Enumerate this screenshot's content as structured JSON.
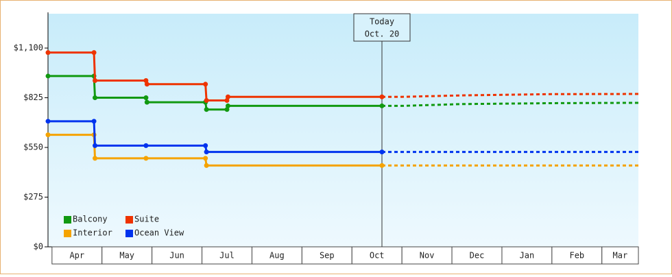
{
  "chart_data": {
    "type": "step-line",
    "categories": [
      "Apr",
      "May",
      "Jun",
      "Jul",
      "Aug",
      "Sep",
      "Oct",
      "Nov",
      "Dec",
      "Jan",
      "Feb",
      "Mar"
    ],
    "xlim": [
      -0.08,
      11.73
    ],
    "ylim": [
      0,
      1290
    ],
    "yticks": [
      {
        "value": 0,
        "label": "$0"
      },
      {
        "value": 275,
        "label": "$275"
      },
      {
        "value": 550,
        "label": "$550"
      },
      {
        "value": 825,
        "label": "$825"
      },
      {
        "value": 1100,
        "label": "$1,100"
      }
    ],
    "today": {
      "x": 6.6,
      "label": "Today",
      "date": "Oct. 20"
    },
    "series": [
      {
        "name": "Balcony",
        "color": "#119911",
        "x": [
          -0.08,
          0.84,
          0.86,
          1.88,
          1.9,
          3.07,
          3.09,
          3.5,
          3.52,
          6.6
        ],
        "values": [
          945,
          945,
          825,
          825,
          800,
          800,
          760,
          760,
          780,
          780
        ],
        "forecast_x": [
          6.6,
          7.0,
          8.2,
          10.0,
          11.73
        ],
        "forecast_values": [
          780,
          780,
          790,
          795,
          797
        ]
      },
      {
        "name": "Suite",
        "color": "#ee3300",
        "x": [
          -0.08,
          0.84,
          0.86,
          1.88,
          1.9,
          3.07,
          3.09,
          3.5,
          3.52,
          6.6
        ],
        "values": [
          1075,
          1075,
          920,
          920,
          900,
          900,
          810,
          810,
          830,
          830
        ],
        "forecast_x": [
          6.6,
          7.0,
          8.2,
          10.0,
          11.73
        ],
        "forecast_values": [
          830,
          830,
          838,
          845,
          846
        ]
      },
      {
        "name": "Interior",
        "color": "#f5a300",
        "x": [
          -0.08,
          0.84,
          0.86,
          1.88,
          3.07,
          3.09,
          6.6
        ],
        "values": [
          620,
          620,
          490,
          490,
          490,
          450,
          450
        ],
        "forecast_x": [
          6.6,
          11.73
        ],
        "forecast_values": [
          450,
          450
        ]
      },
      {
        "name": "Ocean View",
        "color": "#0033ee",
        "x": [
          -0.08,
          0.84,
          0.86,
          1.88,
          3.07,
          3.09,
          6.6
        ],
        "values": [
          695,
          695,
          560,
          560,
          560,
          525,
          525
        ],
        "forecast_x": [
          6.6,
          11.73
        ],
        "forecast_values": [
          525,
          525
        ]
      }
    ]
  }
}
